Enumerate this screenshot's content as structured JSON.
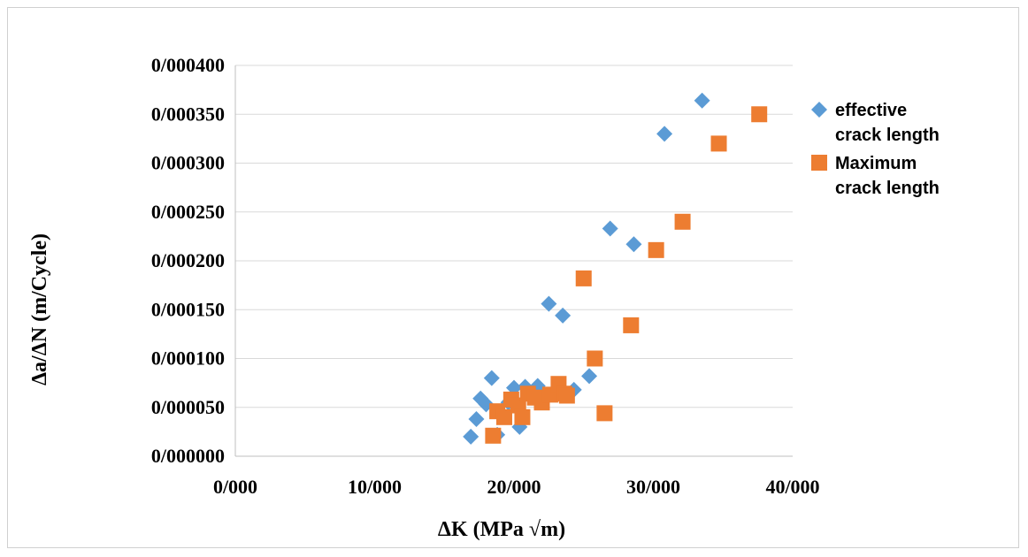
{
  "chart_data": {
    "type": "scatter",
    "title": "",
    "xlabel": "ΔK (MPa √m)",
    "ylabel": "Δa/ΔN (m/Cycle)",
    "xlim": [
      0,
      40
    ],
    "ylim": [
      0,
      0.0004
    ],
    "x_ticks": [
      "0/000",
      "10/000",
      "20/000",
      "30/000",
      "40/000"
    ],
    "y_ticks": [
      "0/000000",
      "0/000050",
      "0/000100",
      "0/000150",
      "0/000200",
      "0/000250",
      "0/000300",
      "0/000350",
      "0/000400"
    ],
    "grid": "horizontal",
    "legend_position": "right",
    "series": [
      {
        "name": "effective crack length",
        "name_lines": [
          "effective",
          "crack length"
        ],
        "marker": "diamond",
        "color": "#5b9bd5",
        "points": [
          [
            16.9,
            2e-05
          ],
          [
            17.3,
            3.8e-05
          ],
          [
            17.6,
            5.9e-05
          ],
          [
            18.0,
            5.3e-05
          ],
          [
            18.4,
            8e-05
          ],
          [
            18.8,
            2.2e-05
          ],
          [
            19.0,
            4.5e-05
          ],
          [
            19.6,
            5.5e-05
          ],
          [
            20.0,
            7e-05
          ],
          [
            20.4,
            3e-05
          ],
          [
            20.8,
            7.1e-05
          ],
          [
            21.3,
            6e-05
          ],
          [
            21.7,
            7.2e-05
          ],
          [
            22.0,
            6.6e-05
          ],
          [
            22.5,
            0.000156
          ],
          [
            23.5,
            0.000144
          ],
          [
            24.3,
            6.8e-05
          ],
          [
            25.4,
            8.2e-05
          ],
          [
            26.9,
            0.000233
          ],
          [
            28.6,
            0.000217
          ],
          [
            30.8,
            0.00033
          ],
          [
            33.5,
            0.000364
          ]
        ]
      },
      {
        "name": "Maximum crack length",
        "name_lines": [
          "Maximum",
          "crack length"
        ],
        "marker": "square",
        "color": "#ed7d31",
        "points": [
          [
            18.5,
            2.1e-05
          ],
          [
            18.8,
            4.6e-05
          ],
          [
            19.3,
            4e-05
          ],
          [
            19.8,
            5.8e-05
          ],
          [
            20.3,
            5.2e-05
          ],
          [
            20.6,
            4e-05
          ],
          [
            21.0,
            6.4e-05
          ],
          [
            21.5,
            6e-05
          ],
          [
            22.0,
            5.5e-05
          ],
          [
            22.6,
            6.3e-05
          ],
          [
            23.2,
            7.4e-05
          ],
          [
            23.6,
            6.4e-05
          ],
          [
            23.8,
            6.2e-05
          ],
          [
            25.0,
            0.000182
          ],
          [
            25.8,
            0.0001
          ],
          [
            26.5,
            4.4e-05
          ],
          [
            28.4,
            0.000134
          ],
          [
            30.2,
            0.000211
          ],
          [
            32.1,
            0.00024
          ],
          [
            34.7,
            0.00032
          ],
          [
            37.6,
            0.00035
          ]
        ]
      }
    ]
  }
}
